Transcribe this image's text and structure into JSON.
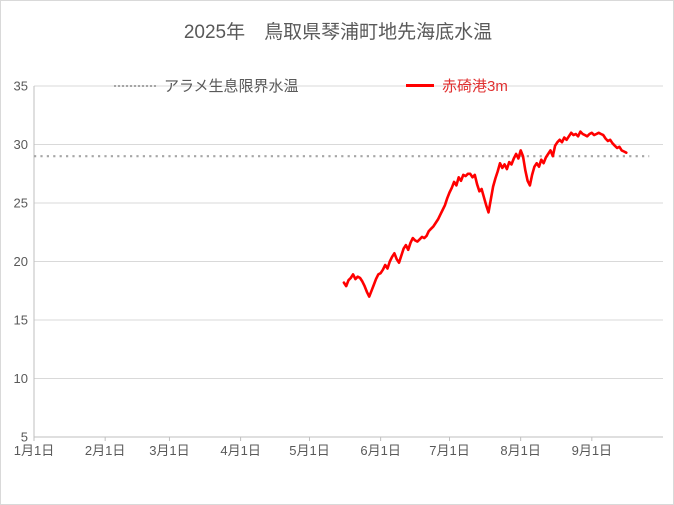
{
  "colors": {
    "text": "#595959",
    "grid": "#d9d9d9",
    "axis": "#bfbfbf",
    "threshold": "#a6a6a6",
    "series_red": "#ff0000"
  },
  "chart_data": {
    "type": "line",
    "title": "2025年　鳥取県琴浦町地先海底水温",
    "xlabel": "",
    "ylabel": "",
    "ylim": [
      5,
      35
    ],
    "y_ticks": [
      5,
      10,
      15,
      20,
      25,
      30,
      35
    ],
    "xlim_day_of_year": [
      1,
      275
    ],
    "x_ticks": [
      {
        "label": "1月1日",
        "day": 1
      },
      {
        "label": "2月1日",
        "day": 32
      },
      {
        "label": "3月1日",
        "day": 60
      },
      {
        "label": "4月1日",
        "day": 91
      },
      {
        "label": "5月1日",
        "day": 121
      },
      {
        "label": "6月1日",
        "day": 152
      },
      {
        "label": "7月1日",
        "day": 182
      },
      {
        "label": "8月1日",
        "day": 213
      },
      {
        "label": "9月1日",
        "day": 244
      }
    ],
    "grid": true,
    "legend_position": "top",
    "series": [
      {
        "name": "アラメ生息限界水温",
        "type": "threshold",
        "style": "dotted",
        "color": "#a6a6a6",
        "value": 29,
        "day_start": 1,
        "day_end": 269
      },
      {
        "name": "赤碕港3m",
        "type": "line",
        "style": "solid",
        "color": "#ff0000",
        "frequency": "daily",
        "start_day_of_year": 136,
        "start_date": "5/16",
        "values": [
          18.2,
          17.9,
          18.4,
          18.6,
          18.9,
          18.5,
          18.7,
          18.6,
          18.3,
          17.9,
          17.4,
          17.0,
          17.5,
          18.0,
          18.5,
          18.9,
          19.0,
          19.3,
          19.7,
          19.4,
          20.0,
          20.4,
          20.7,
          20.2,
          19.9,
          20.5,
          21.1,
          21.4,
          21.0,
          21.6,
          22.0,
          21.8,
          21.7,
          21.9,
          22.1,
          22.0,
          22.2,
          22.6,
          22.8,
          23.0,
          23.3,
          23.6,
          24.0,
          24.4,
          24.8,
          25.4,
          25.9,
          26.3,
          26.8,
          26.5,
          27.2,
          26.9,
          27.4,
          27.3,
          27.5,
          27.5,
          27.2,
          27.4,
          26.6,
          26.0,
          26.2,
          25.5,
          24.8,
          24.2,
          25.3,
          26.4,
          27.1,
          27.7,
          28.4,
          28.0,
          28.3,
          27.9,
          28.5,
          28.3,
          28.8,
          29.2,
          28.8,
          29.5,
          29.0,
          27.8,
          26.9,
          26.5,
          27.4,
          28.1,
          28.4,
          28.1,
          28.7,
          28.4,
          28.9,
          29.2,
          29.5,
          29.0,
          29.9,
          30.2,
          30.4,
          30.2,
          30.6,
          30.4,
          30.7,
          31.0,
          30.8,
          30.9,
          30.7,
          31.1,
          30.9,
          30.8,
          30.7,
          30.9,
          31.0,
          30.8,
          30.9,
          31.0,
          30.9,
          30.8,
          30.5,
          30.3,
          30.4,
          30.1,
          29.9,
          29.7,
          29.8,
          29.5,
          29.4,
          29.3
        ]
      }
    ]
  }
}
